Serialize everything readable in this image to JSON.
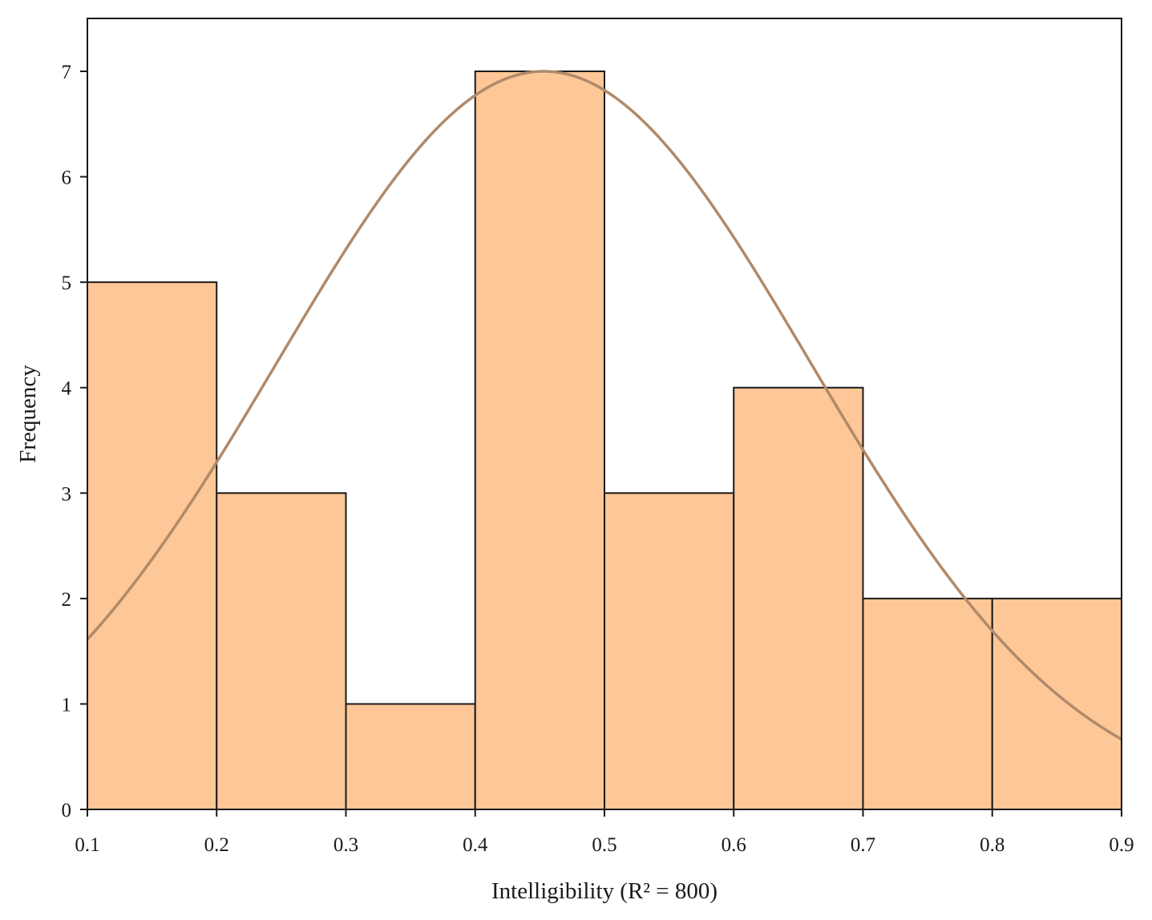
{
  "chart_data": {
    "type": "bar",
    "subtype": "histogram",
    "xlabel": "Intelligibility (R² = 800)",
    "ylabel": "Frequency",
    "xlim": [
      0.1,
      0.9
    ],
    "ylim": [
      0,
      7.5
    ],
    "x_ticks": [
      "0.1",
      "0.2",
      "0.3",
      "0.4",
      "0.5",
      "0.6",
      "0.7",
      "0.8",
      "0.9"
    ],
    "y_ticks": [
      "0",
      "1",
      "2",
      "3",
      "4",
      "5",
      "6",
      "7"
    ],
    "bins": [
      {
        "start": 0.1,
        "end": 0.2,
        "value": 5
      },
      {
        "start": 0.2,
        "end": 0.3,
        "value": 3
      },
      {
        "start": 0.3,
        "end": 0.4,
        "value": 1
      },
      {
        "start": 0.4,
        "end": 0.5,
        "value": 7
      },
      {
        "start": 0.5,
        "end": 0.6,
        "value": 3
      },
      {
        "start": 0.6,
        "end": 0.7,
        "value": 4
      },
      {
        "start": 0.7,
        "end": 0.8,
        "value": 2
      },
      {
        "start": 0.8,
        "end": 0.9,
        "value": 2
      }
    ],
    "normal_curve": {
      "mean": 0.453,
      "sd": 0.206,
      "peak": 7.0
    },
    "grid": false,
    "legend": "none",
    "colors": {
      "bar_fill": "#fdc797",
      "bar_stroke": "#1a1a1a",
      "curve": "#b08a6a",
      "axis": "#1a1a1a"
    }
  }
}
